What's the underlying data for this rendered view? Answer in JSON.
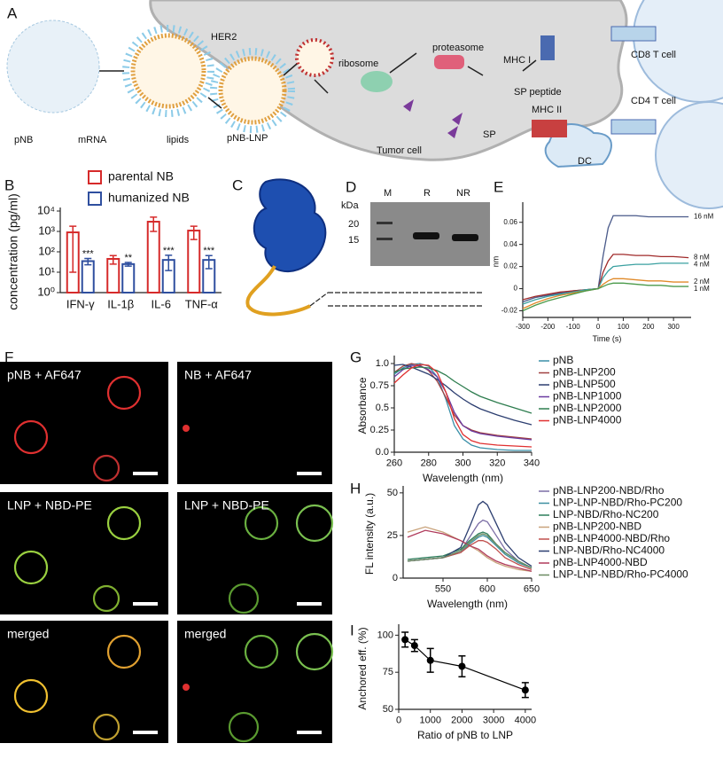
{
  "figure": {
    "A": {
      "label": "A",
      "texts": [
        "HER2",
        "pNB",
        "mRNA",
        "lipids",
        "pNB-LNP",
        "ribosome",
        "proteasome",
        "MHC I",
        "SP peptide",
        "Tumor cell",
        "SP",
        "CD8 T cell",
        "CD4 T cell",
        "MHC II",
        "DC"
      ]
    },
    "C": {
      "label": "C"
    },
    "D": {
      "label": "D",
      "unit": "kDa",
      "lanes": [
        "M",
        "R",
        "NR"
      ],
      "markers": [
        "20",
        "15"
      ]
    },
    "F": {
      "label": "F",
      "images": [
        "pNB + AF647",
        "NB + AF647",
        "LNP + NBD-PE",
        "LNP + NBD-PE",
        "merged",
        "merged"
      ]
    }
  },
  "chart_data": [
    {
      "type": "bar",
      "label": "B",
      "ylabel": "concentration (pg/ml)",
      "log": true,
      "categories": [
        "IFN-γ",
        "IL-1β",
        "IL-6",
        "TNF-α"
      ],
      "ylim": [
        1,
        10000
      ],
      "yticks": [
        {
          "value": 1,
          "label": "10⁰"
        },
        {
          "value": 10,
          "label": "10¹"
        },
        {
          "value": 100,
          "label": "10²"
        },
        {
          "value": 1000,
          "label": "10³"
        },
        {
          "value": 10000,
          "label": "10⁴"
        }
      ],
      "series": [
        {
          "name": "parental NB",
          "color": "#d62a2a",
          "values": [
            900,
            45,
            3000,
            1100
          ],
          "errors": [
            890,
            20,
            2000,
            700
          ]
        },
        {
          "name": "humanized NB",
          "color": "#2f4f9f",
          "values": [
            35,
            25,
            40,
            40
          ],
          "errors": [
            12,
            5,
            28,
            25
          ],
          "significance": [
            "***",
            "**",
            "***",
            "***"
          ]
        }
      ]
    },
    {
      "type": "line",
      "label": "E",
      "xlabel": "Time (s)",
      "ylabel": "nm",
      "legend": "end",
      "x": [
        -300,
        -250,
        -200,
        -150,
        -100,
        -50,
        0,
        20,
        40,
        60,
        100,
        150,
        200,
        250,
        300,
        360
      ],
      "xlim": [
        -300,
        370
      ],
      "ylim": [
        -0.026,
        0.075
      ],
      "xticks": [
        -300,
        -200,
        -100,
        0,
        100,
        200,
        300
      ],
      "yticks": [
        -0.02,
        0,
        0.02,
        0.04,
        0.06
      ],
      "series": [
        {
          "name": "16 nM",
          "color": "#4a5a8a",
          "values": [
            -0.012,
            -0.008,
            -0.006,
            -0.004,
            -0.002,
            -0.001,
            0,
            0.03,
            0.055,
            0.066,
            0.066,
            0.066,
            0.065,
            0.065,
            0.065,
            0.065
          ]
        },
        {
          "name": "8 nM",
          "color": "#a02a2a",
          "values": [
            -0.01,
            -0.007,
            -0.005,
            -0.003,
            -0.002,
            -0.001,
            0,
            0.015,
            0.025,
            0.031,
            0.031,
            0.03,
            0.03,
            0.029,
            0.029,
            0.028
          ]
        },
        {
          "name": "4 nM",
          "color": "#3aa0a0",
          "values": [
            -0.014,
            -0.01,
            -0.007,
            -0.005,
            -0.003,
            -0.001,
            0,
            0.01,
            0.016,
            0.02,
            0.021,
            0.022,
            0.022,
            0.023,
            0.023,
            0.023
          ]
        },
        {
          "name": "2 nM",
          "color": "#e08a2a",
          "values": [
            -0.018,
            -0.013,
            -0.009,
            -0.006,
            -0.004,
            -0.002,
            0,
            0.004,
            0.007,
            0.009,
            0.009,
            0.008,
            0.007,
            0.007,
            0.006,
            0.006
          ]
        },
        {
          "name": "1 nM",
          "color": "#4a9a4a",
          "values": [
            -0.02,
            -0.015,
            -0.011,
            -0.008,
            -0.005,
            -0.002,
            0,
            0.002,
            0.004,
            0.005,
            0.005,
            0.004,
            0.003,
            0.003,
            0.002,
            0.002
          ]
        }
      ]
    },
    {
      "type": "line",
      "label": "G",
      "xlabel": "Wavelength (nm)",
      "ylabel": "Absorbance",
      "legend": "right",
      "x": [
        260,
        265,
        270,
        275,
        280,
        285,
        290,
        295,
        300,
        305,
        310,
        320,
        330,
        340
      ],
      "xlim": [
        260,
        340
      ],
      "ylim": [
        0,
        1.05
      ],
      "xticks": [
        260,
        280,
        300,
        320,
        340
      ],
      "yticks": [
        {
          "value": 0,
          "label": "0.0"
        },
        0.25,
        0.5,
        0.75,
        {
          "value": 1,
          "label": "1.0"
        }
      ],
      "series": [
        {
          "name": "pNB",
          "color": "#3a8fa8",
          "values": [
            0.88,
            0.95,
            0.99,
            1.0,
            0.97,
            0.85,
            0.6,
            0.3,
            0.15,
            0.08,
            0.05,
            0.03,
            0.02,
            0.02
          ]
        },
        {
          "name": "pNB-LNP200",
          "color": "#a04040",
          "values": [
            0.9,
            0.97,
            1.0,
            0.98,
            0.92,
            0.8,
            0.62,
            0.42,
            0.3,
            0.25,
            0.22,
            0.19,
            0.17,
            0.15
          ]
        },
        {
          "name": "pNB-LNP500",
          "color": "#2c3e70",
          "values": [
            0.98,
            0.99,
            0.96,
            0.92,
            0.88,
            0.82,
            0.75,
            0.67,
            0.6,
            0.54,
            0.49,
            0.42,
            0.36,
            0.31
          ]
        },
        {
          "name": "pNB-LNP1000",
          "color": "#6a3aa0",
          "values": [
            0.85,
            0.93,
            0.98,
            0.97,
            0.93,
            0.85,
            0.68,
            0.45,
            0.3,
            0.24,
            0.21,
            0.18,
            0.16,
            0.14
          ]
        },
        {
          "name": "pNB-LNP2000",
          "color": "#2e7d4f",
          "values": [
            0.9,
            0.94,
            0.95,
            0.96,
            0.95,
            0.92,
            0.87,
            0.8,
            0.74,
            0.68,
            0.63,
            0.56,
            0.5,
            0.44
          ]
        },
        {
          "name": "pNB-LNP4000",
          "color": "#e03030",
          "values": [
            0.78,
            0.87,
            0.95,
            0.99,
            0.98,
            0.9,
            0.68,
            0.38,
            0.2,
            0.13,
            0.1,
            0.08,
            0.07,
            0.06
          ]
        }
      ]
    },
    {
      "type": "line",
      "label": "H",
      "xlabel": "Wavelength (nm)",
      "ylabel": "FL intensity (a.u.)",
      "legend": "right",
      "x": [
        510,
        530,
        550,
        570,
        580,
        590,
        595,
        600,
        610,
        620,
        635,
        650
      ],
      "xlim": [
        505,
        650
      ],
      "ylim": [
        0,
        52
      ],
      "xticks": [
        550,
        600,
        650
      ],
      "yticks": [
        0,
        25,
        50
      ],
      "series": [
        {
          "name": "pNB-LNP200-NBD/Rho",
          "color": "#7b6ea5",
          "values": [
            10,
            11,
            12,
            16,
            24,
            32,
            34,
            33,
            25,
            17,
            10,
            6
          ]
        },
        {
          "name": "LNP-LNP-NBD/Rho-PC200",
          "color": "#3c8fa0",
          "values": [
            10,
            11,
            12,
            15,
            20,
            24,
            25,
            24,
            19,
            14,
            9,
            6
          ]
        },
        {
          "name": "LNP-NBD/Rho-NC200",
          "color": "#2e7d5b",
          "values": [
            11,
            12,
            13,
            17,
            22,
            26,
            27,
            26,
            20,
            15,
            10,
            6
          ]
        },
        {
          "name": "pNB-LNP200-NBD",
          "color": "#c8a27a",
          "values": [
            27,
            30,
            27,
            22,
            19,
            16,
            14,
            12,
            9,
            7,
            5,
            4
          ]
        },
        {
          "name": "pNB-LNP4000-NBD/Rho",
          "color": "#c0504d",
          "values": [
            10,
            11,
            12,
            15,
            19,
            22,
            22,
            21,
            17,
            12,
            8,
            5
          ]
        },
        {
          "name": "LNP-NBD/Rho-NC4000",
          "color": "#2c3e70",
          "values": [
            10,
            11,
            12,
            18,
            30,
            43,
            45,
            43,
            32,
            21,
            12,
            7
          ]
        },
        {
          "name": "pNB-LNP4000-NBD",
          "color": "#b03a5b",
          "values": [
            24,
            28,
            26,
            22,
            19,
            17,
            15,
            13,
            10,
            8,
            6,
            4
          ]
        },
        {
          "name": "LNP-LNP-NBD/Rho-PC4000",
          "color": "#6a8a60",
          "values": [
            10,
            11,
            12,
            16,
            21,
            25,
            26,
            25,
            20,
            15,
            10,
            6
          ]
        }
      ]
    },
    {
      "type": "line",
      "label": "I",
      "xlabel": "Ratio of pNB to LNP",
      "ylabel": "Anchored eff. (%)",
      "markers": true,
      "x": [
        200,
        500,
        1000,
        2000,
        4000
      ],
      "xlim": [
        0,
        4200
      ],
      "ylim": [
        50,
        105
      ],
      "xticks": [
        0,
        1000,
        2000,
        3000,
        4000
      ],
      "yticks": [
        50,
        75,
        100
      ],
      "series": [
        {
          "color": "#000000",
          "values": [
            97,
            93,
            83,
            79,
            63
          ],
          "errors": [
            5,
            4,
            8,
            7,
            5
          ]
        }
      ]
    }
  ]
}
